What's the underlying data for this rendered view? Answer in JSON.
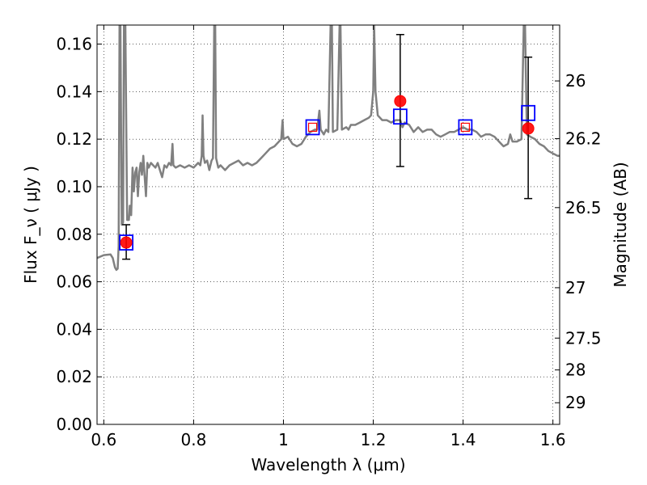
{
  "chart_data": {
    "type": "scatter",
    "xlabel": "Wavelength  λ (μm)",
    "ylabel": "Flux  F_ν  ( μJy )",
    "y2label": "Magnitude (AB)",
    "xlim": [
      0.585,
      1.615
    ],
    "ylim": [
      0.0,
      0.168
    ],
    "x_ticks": [
      0.6,
      0.8,
      1.0,
      1.2,
      1.4,
      1.6
    ],
    "x_tick_labels": [
      "0.6",
      "0.8",
      "1",
      "1.2",
      "1.4",
      "1.6"
    ],
    "y_ticks": [
      0.0,
      0.02,
      0.04,
      0.06,
      0.08,
      0.1,
      0.12,
      0.14,
      0.16
    ],
    "y_tick_labels": [
      "0.00",
      "0.02",
      "0.04",
      "0.06",
      "0.08",
      "0.10",
      "0.12",
      "0.14",
      "0.16"
    ],
    "y2_ticks": [
      {
        "label": "26",
        "flux": 0.1445
      },
      {
        "label": "26.2",
        "flux": 0.1202
      },
      {
        "label": "26.5",
        "flux": 0.0912
      },
      {
        "label": "27",
        "flux": 0.0575
      },
      {
        "label": "27.5",
        "flux": 0.0363
      },
      {
        "label": "28",
        "flux": 0.0229
      },
      {
        "label": "29",
        "flux": 0.0091
      }
    ],
    "grid": true,
    "grid_style": "dotted",
    "colors": {
      "model": "#808080",
      "observed": "#ff0000",
      "model_band": "#0000ff",
      "errorbar": "#000000"
    },
    "series": [
      {
        "kind": "line",
        "points": [
          [
            0.585,
            0.07
          ],
          [
            0.6,
            0.0712
          ],
          [
            0.615,
            0.0715
          ],
          [
            0.62,
            0.07
          ],
          [
            0.625,
            0.066
          ],
          [
            0.628,
            0.065
          ],
          [
            0.631,
            0.0655
          ],
          [
            0.633,
            0.075
          ],
          [
            0.635,
            0.168
          ],
          [
            0.637,
            0.168
          ],
          [
            0.64,
            0.084
          ],
          [
            0.643,
            0.085
          ],
          [
            0.645,
            0.168
          ],
          [
            0.648,
            0.168
          ],
          [
            0.652,
            0.086
          ],
          [
            0.656,
            0.086
          ],
          [
            0.658,
            0.092
          ],
          [
            0.661,
            0.088
          ],
          [
            0.664,
            0.108
          ],
          [
            0.667,
            0.098
          ],
          [
            0.67,
            0.106
          ],
          [
            0.673,
            0.108
          ],
          [
            0.676,
            0.096
          ],
          [
            0.679,
            0.106
          ],
          [
            0.682,
            0.11
          ],
          [
            0.685,
            0.105
          ],
          [
            0.688,
            0.113
          ],
          [
            0.691,
            0.104
          ],
          [
            0.694,
            0.096
          ],
          [
            0.697,
            0.11
          ],
          [
            0.7,
            0.108
          ],
          [
            0.705,
            0.11
          ],
          [
            0.71,
            0.109
          ],
          [
            0.715,
            0.108
          ],
          [
            0.72,
            0.11
          ],
          [
            0.725,
            0.107
          ],
          [
            0.73,
            0.104
          ],
          [
            0.735,
            0.109
          ],
          [
            0.74,
            0.108
          ],
          [
            0.745,
            0.11
          ],
          [
            0.75,
            0.109
          ],
          [
            0.753,
            0.118
          ],
          [
            0.755,
            0.109
          ],
          [
            0.76,
            0.108
          ],
          [
            0.77,
            0.109
          ],
          [
            0.78,
            0.108
          ],
          [
            0.79,
            0.109
          ],
          [
            0.8,
            0.108
          ],
          [
            0.81,
            0.11
          ],
          [
            0.815,
            0.109
          ],
          [
            0.818,
            0.113
          ],
          [
            0.82,
            0.13
          ],
          [
            0.822,
            0.113
          ],
          [
            0.825,
            0.11
          ],
          [
            0.83,
            0.111
          ],
          [
            0.835,
            0.107
          ],
          [
            0.84,
            0.111
          ],
          [
            0.843,
            0.112
          ],
          [
            0.846,
            0.168
          ],
          [
            0.848,
            0.168
          ],
          [
            0.85,
            0.112
          ],
          [
            0.855,
            0.108
          ],
          [
            0.86,
            0.109
          ],
          [
            0.87,
            0.107
          ],
          [
            0.88,
            0.109
          ],
          [
            0.89,
            0.11
          ],
          [
            0.9,
            0.111
          ],
          [
            0.91,
            0.109
          ],
          [
            0.92,
            0.11
          ],
          [
            0.93,
            0.109
          ],
          [
            0.94,
            0.11
          ],
          [
            0.95,
            0.112
          ],
          [
            0.96,
            0.114
          ],
          [
            0.97,
            0.116
          ],
          [
            0.98,
            0.117
          ],
          [
            0.99,
            0.119
          ],
          [
            0.995,
            0.12
          ],
          [
            0.998,
            0.128
          ],
          [
            1.0,
            0.12
          ],
          [
            1.01,
            0.121
          ],
          [
            1.02,
            0.118
          ],
          [
            1.03,
            0.117
          ],
          [
            1.04,
            0.118
          ],
          [
            1.05,
            0.121
          ],
          [
            1.06,
            0.123
          ],
          [
            1.07,
            0.124
          ],
          [
            1.075,
            0.124
          ],
          [
            1.08,
            0.132
          ],
          [
            1.083,
            0.124
          ],
          [
            1.09,
            0.122
          ],
          [
            1.095,
            0.124
          ],
          [
            1.1,
            0.123
          ],
          [
            1.105,
            0.168
          ],
          [
            1.108,
            0.168
          ],
          [
            1.11,
            0.123
          ],
          [
            1.12,
            0.124
          ],
          [
            1.125,
            0.168
          ],
          [
            1.127,
            0.168
          ],
          [
            1.13,
            0.124
          ],
          [
            1.14,
            0.125
          ],
          [
            1.145,
            0.124
          ],
          [
            1.15,
            0.126
          ],
          [
            1.16,
            0.126
          ],
          [
            1.17,
            0.127
          ],
          [
            1.18,
            0.128
          ],
          [
            1.19,
            0.129
          ],
          [
            1.195,
            0.13
          ],
          [
            1.2,
            0.14
          ],
          [
            1.202,
            0.168
          ],
          [
            1.205,
            0.14
          ],
          [
            1.21,
            0.13
          ],
          [
            1.22,
            0.128
          ],
          [
            1.23,
            0.128
          ],
          [
            1.24,
            0.127
          ],
          [
            1.25,
            0.128
          ],
          [
            1.26,
            0.128
          ],
          [
            1.265,
            0.125
          ],
          [
            1.27,
            0.127
          ],
          [
            1.28,
            0.126
          ],
          [
            1.29,
            0.123
          ],
          [
            1.3,
            0.125
          ],
          [
            1.31,
            0.123
          ],
          [
            1.32,
            0.124
          ],
          [
            1.33,
            0.124
          ],
          [
            1.34,
            0.122
          ],
          [
            1.35,
            0.121
          ],
          [
            1.36,
            0.122
          ],
          [
            1.37,
            0.123
          ],
          [
            1.38,
            0.123
          ],
          [
            1.39,
            0.124
          ],
          [
            1.4,
            0.125
          ],
          [
            1.41,
            0.124
          ],
          [
            1.42,
            0.124
          ],
          [
            1.43,
            0.123
          ],
          [
            1.44,
            0.121
          ],
          [
            1.45,
            0.122
          ],
          [
            1.46,
            0.122
          ],
          [
            1.47,
            0.121
          ],
          [
            1.48,
            0.119
          ],
          [
            1.49,
            0.117
          ],
          [
            1.5,
            0.118
          ],
          [
            1.505,
            0.122
          ],
          [
            1.51,
            0.119
          ],
          [
            1.52,
            0.119
          ],
          [
            1.53,
            0.12
          ],
          [
            1.535,
            0.168
          ],
          [
            1.538,
            0.168
          ],
          [
            1.542,
            0.122
          ],
          [
            1.55,
            0.121
          ],
          [
            1.56,
            0.12
          ],
          [
            1.57,
            0.118
          ],
          [
            1.58,
            0.117
          ],
          [
            1.59,
            0.115
          ],
          [
            1.6,
            0.114
          ],
          [
            1.61,
            0.113
          ],
          [
            1.615,
            0.113
          ]
        ]
      },
      {
        "kind": "model_band_markers",
        "marker": "square",
        "points": [
          {
            "x": 0.65,
            "y": 0.0765
          },
          {
            "x": 1.065,
            "y": 0.125
          },
          {
            "x": 1.26,
            "y": 0.1295
          },
          {
            "x": 1.405,
            "y": 0.125
          },
          {
            "x": 1.545,
            "y": 0.131
          }
        ]
      },
      {
        "kind": "observed_points",
        "marker": "circle",
        "points": [
          {
            "x": 0.65,
            "y": 0.0765,
            "yerr_low": 0.0695,
            "yerr_high": 0.084
          },
          {
            "x": 1.065,
            "y": 0.125
          },
          {
            "x": 1.26,
            "y": 0.136,
            "yerr_low": 0.1085,
            "yerr_high": 0.164
          },
          {
            "x": 1.405,
            "y": 0.125
          },
          {
            "x": 1.545,
            "y": 0.1245,
            "yerr_low": 0.095,
            "yerr_high": 0.1545
          }
        ]
      }
    ]
  }
}
